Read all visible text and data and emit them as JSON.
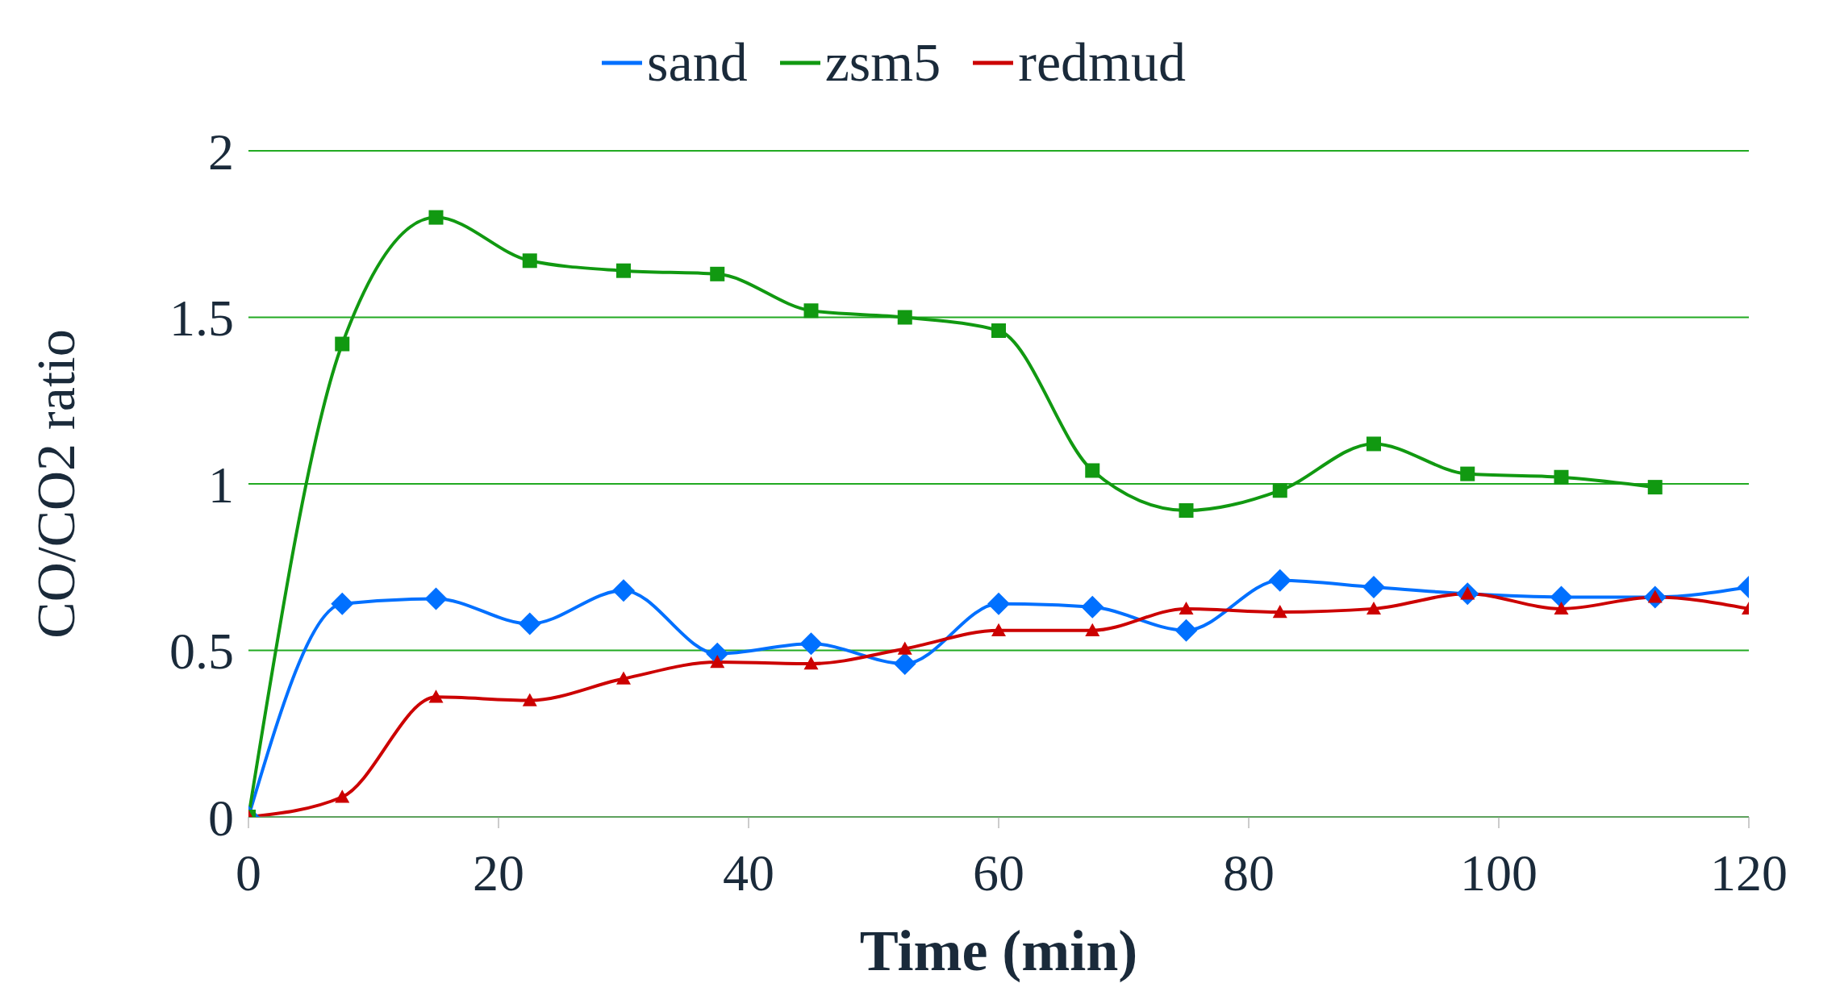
{
  "chart_data": {
    "type": "line",
    "xlabel": "Time (min)",
    "ylabel": "CO/CO2 ratio",
    "xlim": [
      0,
      120
    ],
    "xticks": [
      0,
      20,
      40,
      60,
      80,
      100,
      120
    ],
    "ylim": [
      0,
      2
    ],
    "yticks": [
      0,
      0.5,
      1,
      1.5,
      2
    ],
    "grid": "y",
    "legend": "top",
    "line_style": "solid",
    "series": [
      {
        "name": "sand",
        "color": "#0070ff",
        "marker": "diamond",
        "x": [
          0,
          7.5,
          15,
          22.5,
          30,
          37.5,
          45,
          52.5,
          60,
          67.5,
          75,
          82.5,
          90,
          97.5,
          105,
          112.5,
          120
        ],
        "values": [
          0,
          0.64,
          0.655,
          0.58,
          0.68,
          0.49,
          0.52,
          0.46,
          0.64,
          0.63,
          0.56,
          0.71,
          0.69,
          0.67,
          0.66,
          0.66,
          0.69
        ]
      },
      {
        "name": "zsm5",
        "color": "#119911",
        "marker": "square",
        "x": [
          0,
          7.5,
          15,
          22.5,
          30,
          37.5,
          45,
          52.5,
          60,
          67.5,
          75,
          82.5,
          90,
          97.5,
          105,
          112.5
        ],
        "values": [
          0,
          1.42,
          1.8,
          1.67,
          1.64,
          1.63,
          1.52,
          1.5,
          1.46,
          1.04,
          0.92,
          0.98,
          1.12,
          1.03,
          1.02,
          0.99
        ]
      },
      {
        "name": "redmud",
        "color": "#cc0000",
        "marker": "triangle",
        "x": [
          0,
          7.5,
          15,
          22.5,
          30,
          37.5,
          45,
          52.5,
          60,
          67.5,
          75,
          82.5,
          90,
          97.5,
          105,
          112.5,
          120
        ],
        "values": [
          0,
          0.06,
          0.36,
          0.35,
          0.415,
          0.465,
          0.46,
          0.505,
          0.56,
          0.56,
          0.625,
          0.615,
          0.625,
          0.67,
          0.625,
          0.66,
          0.625
        ]
      }
    ]
  }
}
